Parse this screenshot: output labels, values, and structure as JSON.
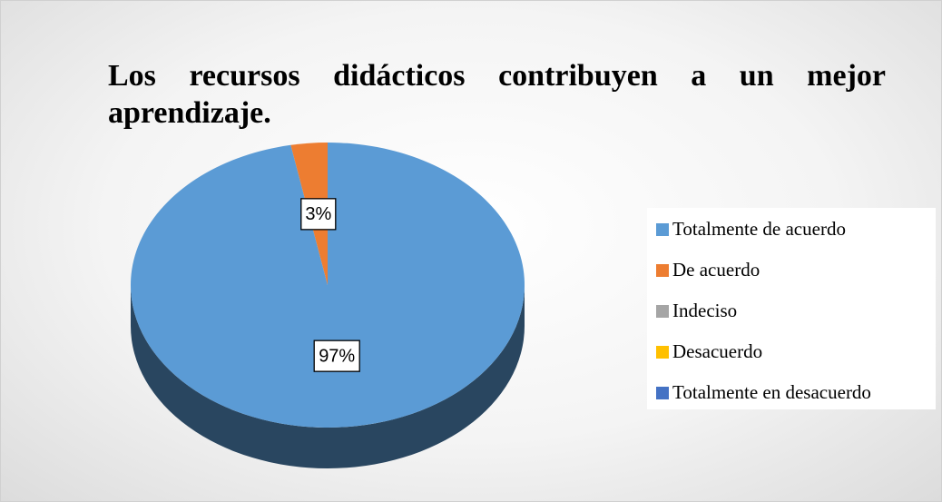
{
  "chart_data": {
    "type": "pie",
    "title": "Los recursos didácticos contribuyen a un mejor aprendizaje.",
    "categories": [
      "Totalmente de acuerdo",
      "De acuerdo",
      "Indeciso",
      "Desacuerdo",
      "Totalmente en desacuerdo"
    ],
    "values": [
      97,
      3,
      0,
      0,
      0
    ],
    "value_labels": [
      "97%",
      "3%",
      null,
      null,
      null
    ],
    "colors": [
      "#5b9bd5",
      "#ed7d31",
      "#a5a5a5",
      "#ffc000",
      "#4472c4"
    ],
    "legend": "right"
  }
}
